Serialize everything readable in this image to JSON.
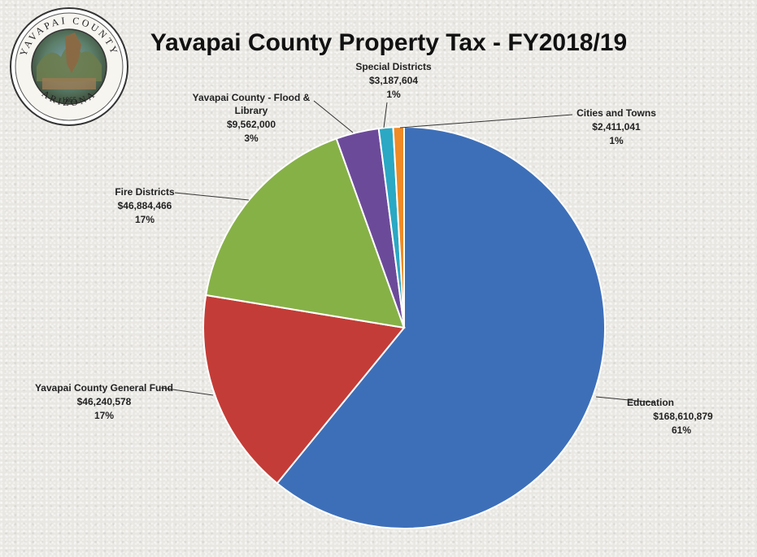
{
  "seal": {
    "top_text": "YAVAPAI COUNTY",
    "bottom_text": "ARIZONA",
    "year": "1865"
  },
  "chart_data": {
    "type": "pie",
    "title": "Yavapai County Property Tax - FY2018/19",
    "slices": [
      {
        "label": "Education",
        "value": 168610879,
        "value_label": "$168,610,879",
        "percent": "61%",
        "color": "#3d6fb8"
      },
      {
        "label": "Yavapai County General Fund",
        "value": 46240578,
        "value_label": "$46,240,578",
        "percent": "17%",
        "color": "#c43c37"
      },
      {
        "label": "Fire Districts",
        "value": 46884466,
        "value_label": "$46,884,466",
        "percent": "17%",
        "color": "#86b147"
      },
      {
        "label": "Yavapai County - Flood & Library",
        "value": 9562000,
        "value_label": "$9,562,000",
        "percent": "3%",
        "color": "#6c4a9a"
      },
      {
        "label": "Special Districts",
        "value": 3187604,
        "value_label": "$3,187,604",
        "percent": "1%",
        "color": "#2aa8c4"
      },
      {
        "label": "Cities and Towns",
        "value": 2411041,
        "value_label": "$2,411,041",
        "percent": "1%",
        "color": "#f08a24"
      }
    ]
  }
}
